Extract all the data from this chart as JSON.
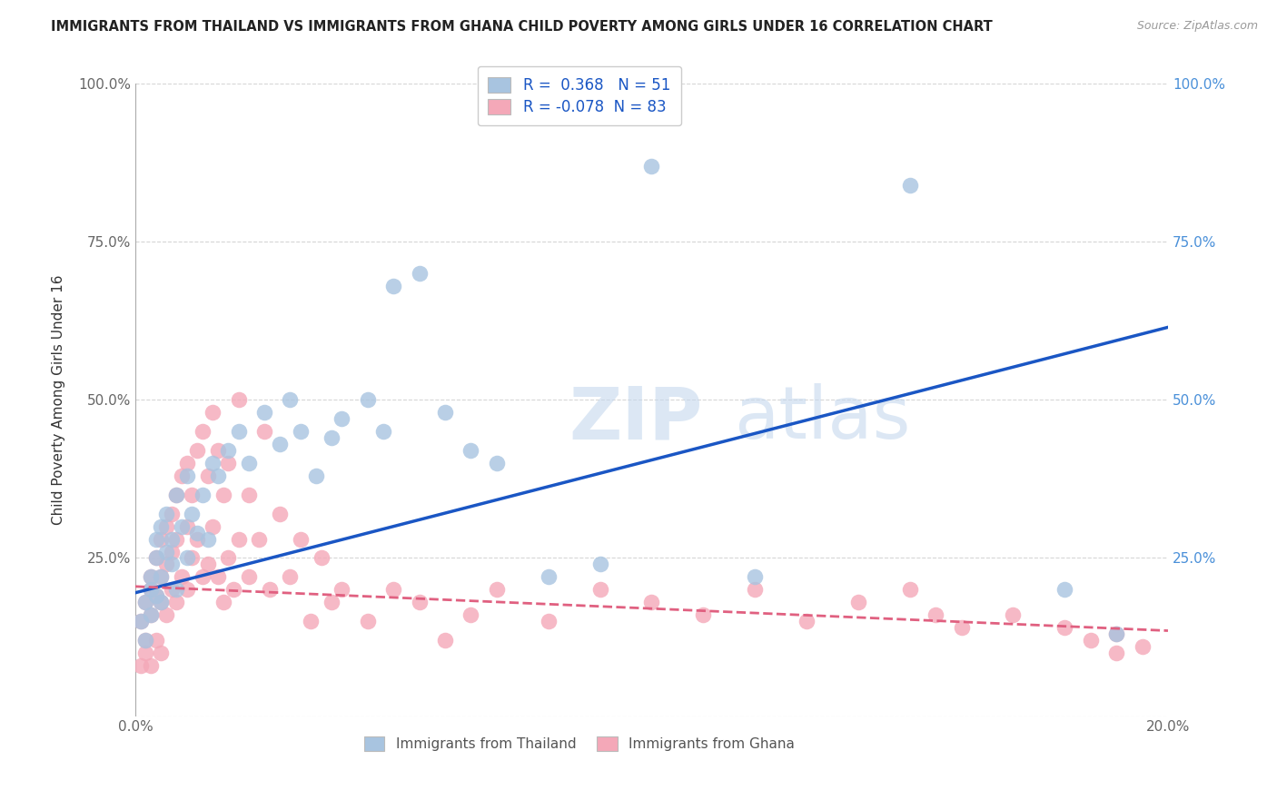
{
  "title": "IMMIGRANTS FROM THAILAND VS IMMIGRANTS FROM GHANA CHILD POVERTY AMONG GIRLS UNDER 16 CORRELATION CHART",
  "source": "Source: ZipAtlas.com",
  "ylabel": "Child Poverty Among Girls Under 16",
  "legend_bottom": [
    "Immigrants from Thailand",
    "Immigrants from Ghana"
  ],
  "legend_box": {
    "thailand": {
      "R": 0.368,
      "N": 51
    },
    "ghana": {
      "R": -0.078,
      "N": 83
    }
  },
  "thailand_color": "#a8c4e0",
  "ghana_color": "#f4a8b8",
  "thailand_line_color": "#1a56c4",
  "ghana_line_color": "#e06080",
  "watermark": "ZIPatlas",
  "background_color": "#ffffff",
  "grid_color": "#cccccc",
  "xlim": [
    0.0,
    0.2
  ],
  "ylim": [
    0.0,
    1.0
  ],
  "thailand_trend": [
    0.195,
    0.615
  ],
  "ghana_trend": [
    0.205,
    0.135
  ],
  "thailand_scatter": {
    "x": [
      0.001,
      0.002,
      0.002,
      0.003,
      0.003,
      0.003,
      0.004,
      0.004,
      0.004,
      0.005,
      0.005,
      0.005,
      0.006,
      0.006,
      0.007,
      0.007,
      0.008,
      0.008,
      0.009,
      0.01,
      0.01,
      0.011,
      0.012,
      0.013,
      0.014,
      0.015,
      0.016,
      0.018,
      0.02,
      0.022,
      0.025,
      0.028,
      0.03,
      0.032,
      0.035,
      0.038,
      0.04,
      0.045,
      0.048,
      0.05,
      0.055,
      0.06,
      0.065,
      0.07,
      0.08,
      0.09,
      0.1,
      0.12,
      0.15,
      0.18,
      0.19
    ],
    "y": [
      0.15,
      0.18,
      0.12,
      0.2,
      0.22,
      0.16,
      0.25,
      0.19,
      0.28,
      0.22,
      0.3,
      0.18,
      0.26,
      0.32,
      0.28,
      0.24,
      0.35,
      0.2,
      0.3,
      0.25,
      0.38,
      0.32,
      0.29,
      0.35,
      0.28,
      0.4,
      0.38,
      0.42,
      0.45,
      0.4,
      0.48,
      0.43,
      0.5,
      0.45,
      0.38,
      0.44,
      0.47,
      0.5,
      0.45,
      0.68,
      0.7,
      0.48,
      0.42,
      0.4,
      0.22,
      0.24,
      0.87,
      0.22,
      0.84,
      0.2,
      0.13
    ]
  },
  "ghana_scatter": {
    "x": [
      0.001,
      0.001,
      0.002,
      0.002,
      0.002,
      0.003,
      0.003,
      0.003,
      0.003,
      0.004,
      0.004,
      0.004,
      0.005,
      0.005,
      0.005,
      0.005,
      0.006,
      0.006,
      0.006,
      0.007,
      0.007,
      0.007,
      0.008,
      0.008,
      0.008,
      0.009,
      0.009,
      0.01,
      0.01,
      0.01,
      0.011,
      0.011,
      0.012,
      0.012,
      0.013,
      0.013,
      0.014,
      0.014,
      0.015,
      0.015,
      0.016,
      0.016,
      0.017,
      0.017,
      0.018,
      0.018,
      0.019,
      0.02,
      0.02,
      0.022,
      0.022,
      0.024,
      0.025,
      0.026,
      0.028,
      0.03,
      0.032,
      0.034,
      0.036,
      0.038,
      0.04,
      0.045,
      0.05,
      0.055,
      0.06,
      0.065,
      0.07,
      0.08,
      0.09,
      0.1,
      0.11,
      0.12,
      0.13,
      0.14,
      0.15,
      0.155,
      0.16,
      0.17,
      0.18,
      0.185,
      0.19,
      0.195,
      0.19
    ],
    "y": [
      0.15,
      0.08,
      0.18,
      0.12,
      0.1,
      0.22,
      0.2,
      0.16,
      0.08,
      0.25,
      0.19,
      0.12,
      0.28,
      0.22,
      0.18,
      0.1,
      0.3,
      0.24,
      0.16,
      0.32,
      0.26,
      0.2,
      0.35,
      0.28,
      0.18,
      0.38,
      0.22,
      0.4,
      0.3,
      0.2,
      0.35,
      0.25,
      0.42,
      0.28,
      0.45,
      0.22,
      0.38,
      0.24,
      0.48,
      0.3,
      0.42,
      0.22,
      0.35,
      0.18,
      0.4,
      0.25,
      0.2,
      0.5,
      0.28,
      0.35,
      0.22,
      0.28,
      0.45,
      0.2,
      0.32,
      0.22,
      0.28,
      0.15,
      0.25,
      0.18,
      0.2,
      0.15,
      0.2,
      0.18,
      0.12,
      0.16,
      0.2,
      0.15,
      0.2,
      0.18,
      0.16,
      0.2,
      0.15,
      0.18,
      0.2,
      0.16,
      0.14,
      0.16,
      0.14,
      0.12,
      0.13,
      0.11,
      0.1
    ]
  }
}
